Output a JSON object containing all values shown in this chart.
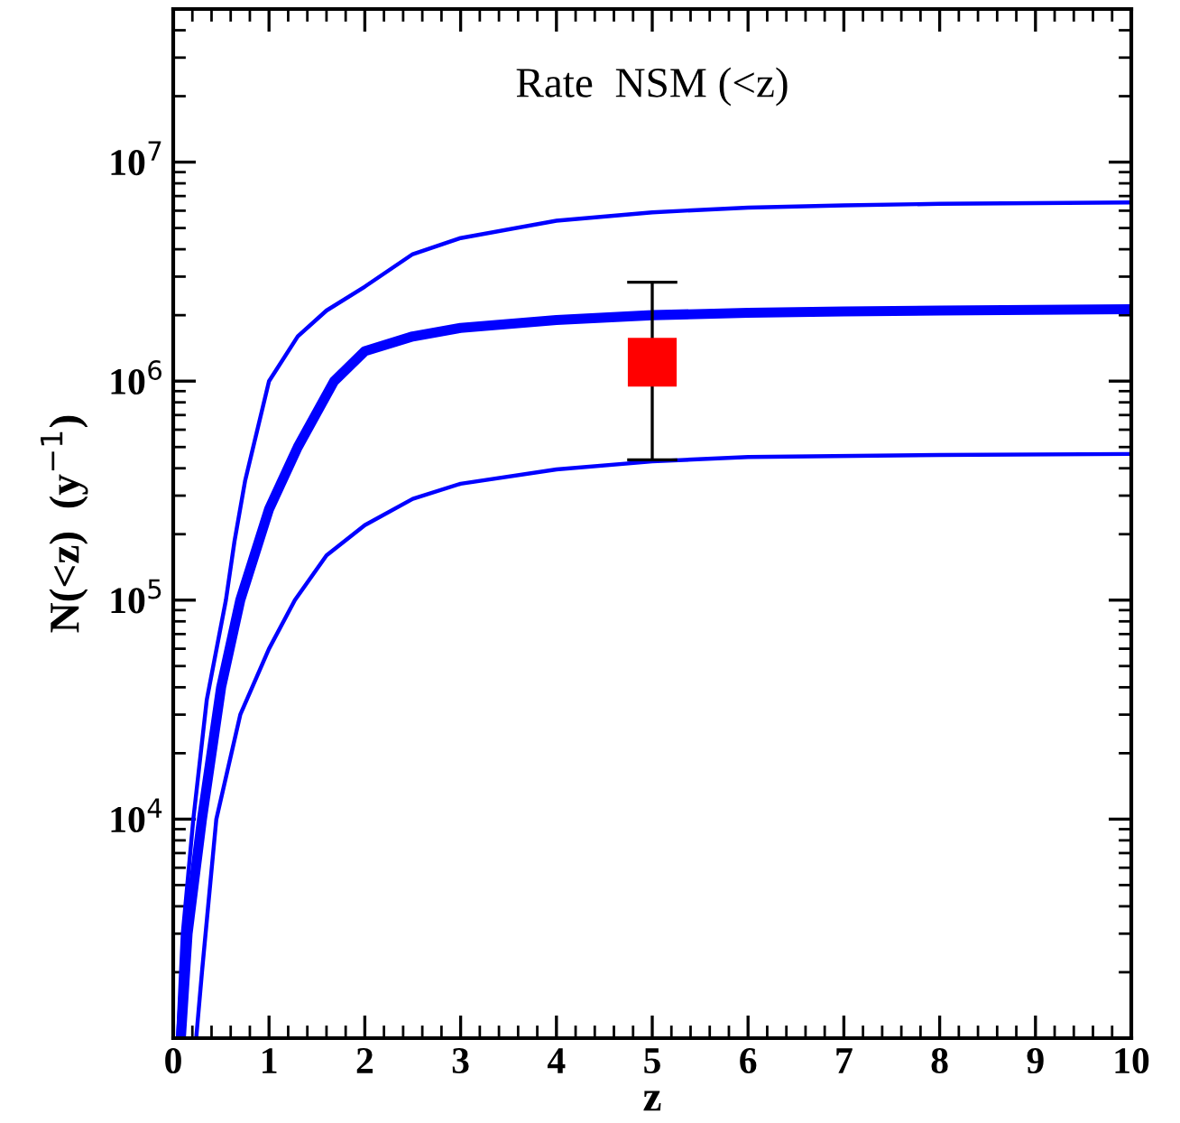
{
  "chart_data": {
    "type": "line",
    "title": "Rate  NSM (<z)",
    "xlabel": "z",
    "ylabel": "N(<z)  (y$^{−1}$)",
    "log": "y",
    "grid": false,
    "legend": false,
    "marker": "none",
    "line_style": "solid",
    "xlim": [
      0,
      10
    ],
    "xticks": [
      0,
      1,
      2,
      3,
      4,
      5,
      6,
      7,
      8,
      9,
      10
    ],
    "ylim": [
      1000,
      50000000
    ],
    "yticks": [
      {
        "value": 10000,
        "label": "10$^{4}$"
      },
      {
        "value": 100000,
        "label": "10$^{5}$"
      },
      {
        "value": 1000000,
        "label": "10$^{6}$"
      },
      {
        "value": 10000000,
        "label": "10$^{7}$"
      }
    ],
    "series": [
      {
        "color": "#0000ff",
        "x": [
          0.05,
          0.1,
          0.21,
          0.35,
          0.55,
          0.64,
          0.75,
          1.0,
          1.3,
          1.6,
          2,
          2.5,
          3,
          4,
          5,
          6,
          7,
          8,
          10
        ],
        "values": [
          1000,
          3000,
          10000,
          35000,
          100000,
          186000,
          350000,
          1000000,
          1600000,
          2100000,
          2700000,
          3800000,
          4500000,
          5400000,
          5900000,
          6200000,
          6350000,
          6450000,
          6550000
        ]
      },
      {
        "color": "#0000ff",
        "x": [
          0.08,
          0.15,
          0.3,
          0.5,
          0.7,
          1.0,
          1.3,
          1.68,
          2,
          2.5,
          3,
          4,
          5,
          6,
          7,
          8,
          10
        ],
        "values": [
          1000,
          3000,
          10000,
          40000,
          100000,
          260000,
          500000,
          1000000,
          1370000,
          1600000,
          1750000,
          1900000,
          2000000,
          2050000,
          2080000,
          2100000,
          2130000
        ]
      },
      {
        "color": "#0000ff",
        "x": [
          0.24,
          0.3,
          0.45,
          0.7,
          1.0,
          1.27,
          1.6,
          2,
          2.5,
          3,
          4,
          5,
          6,
          8,
          10
        ],
        "values": [
          1000,
          2000,
          10000,
          30000,
          60000,
          100000,
          160000,
          220000,
          290000,
          340000,
          395000,
          430000,
          450000,
          460000,
          465000
        ]
      },
      {
        "type": "scatter",
        "marker": "square",
        "color": "#ff0000",
        "x": [
          5
        ],
        "values": [
          1220000
        ],
        "errors": [
          [
            437000,
            2830000
          ]
        ]
      }
    ]
  }
}
